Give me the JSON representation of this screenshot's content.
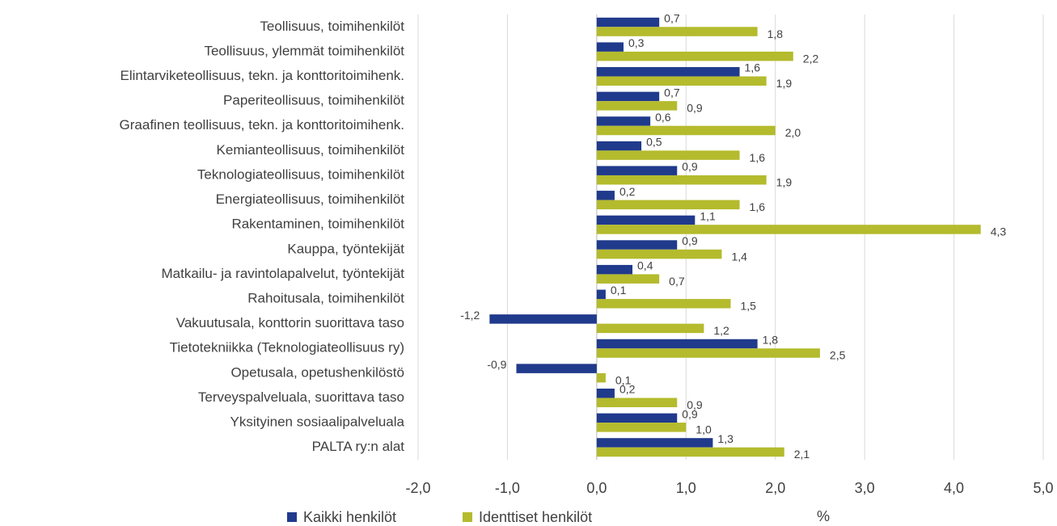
{
  "chart_data": {
    "type": "bar",
    "orientation": "horizontal",
    "categories": [
      "Teollisuus, toimihenkilöt",
      "Teollisuus, ylemmät toimihenkilöt",
      "Elintarviketeollisuus, tekn. ja konttoritoimihenk.",
      "Paperiteollisuus, toimihenkilöt",
      "Graafinen teollisuus, tekn. ja konttoritoimihenk.",
      "Kemianteollisuus, toimihenkilöt",
      "Teknologiateollisuus, toimihenkilöt",
      "Energiateollisuus, toimihenkilöt",
      "Rakentaminen, toimihenkilöt",
      "Kauppa, työntekijät",
      "Matkailu- ja ravintolapalvelut, työntekijät",
      "Rahoitusala, toimihenkilöt",
      "Vakuutusala, konttorin suorittava taso",
      "Tietotekniikka (Teknologiateollisuus ry)",
      "Opetusala, opetushenkilöstö",
      "Terveyspalveluala, suorittava taso",
      "Yksityinen sosiaalipalveluala",
      "PALTA ry:n alat"
    ],
    "series": [
      {
        "name": "Kaikki henkilöt",
        "color": "#203a8c",
        "values": [
          0.7,
          0.3,
          1.6,
          0.7,
          0.6,
          0.5,
          0.9,
          0.2,
          1.1,
          0.9,
          0.4,
          0.1,
          -1.2,
          1.8,
          -0.9,
          0.2,
          0.9,
          1.3
        ],
        "value_labels": [
          "0,7",
          "0,3",
          "1,6",
          "0,7",
          "0,6",
          "0,5",
          "0,9",
          "0,2",
          "1,1",
          "0,9",
          "0,4",
          "0,1",
          "-1,2",
          "1,8",
          "-0,9",
          "0,2",
          "0,9",
          "1,3"
        ]
      },
      {
        "name": "Identtiset henkilöt",
        "color": "#b4bb2d",
        "values": [
          1.8,
          2.2,
          1.9,
          0.9,
          2.0,
          1.6,
          1.9,
          1.6,
          4.3,
          1.4,
          0.7,
          1.5,
          1.2,
          2.5,
          0.1,
          0.9,
          1.0,
          2.1
        ],
        "value_labels": [
          "1,8",
          "2,2",
          "1,9",
          "0,9",
          "2,0",
          "1,6",
          "1,9",
          "1,6",
          "4,3",
          "1,4",
          "0,7",
          "1,5",
          "1,2",
          "2,5",
          "0,1",
          "0,9",
          "1,0",
          "2,1"
        ]
      }
    ],
    "x_label": "%",
    "xlim": [
      -2,
      5
    ],
    "xticks": [
      {
        "value": -2,
        "label": "-2,0"
      },
      {
        "value": -1,
        "label": "-1,0"
      },
      {
        "value": 0,
        "label": "0,0"
      },
      {
        "value": 1,
        "label": "1,0"
      },
      {
        "value": 2,
        "label": "2,0"
      },
      {
        "value": 3,
        "label": "3,0"
      },
      {
        "value": 4,
        "label": "4,0"
      },
      {
        "value": 5,
        "label": "5,0"
      }
    ],
    "grid": true,
    "legend": "bottom"
  }
}
